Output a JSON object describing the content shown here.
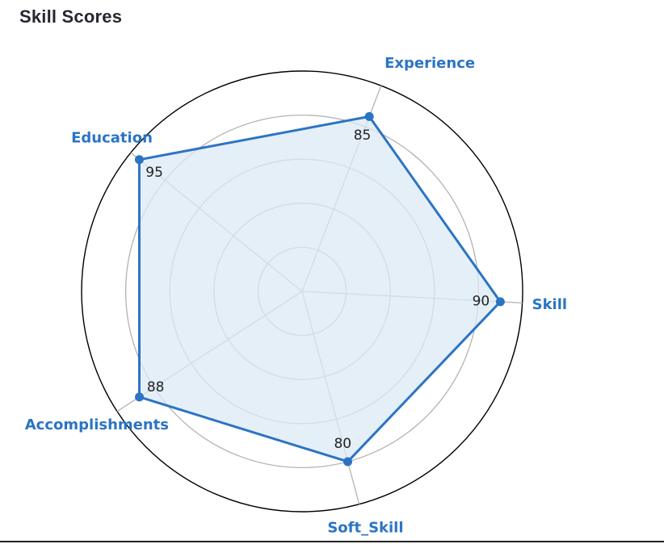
{
  "page": {
    "title": "Skill Scores"
  },
  "chart_data": {
    "type": "radar",
    "categories": [
      "Skill",
      "Experience",
      "Education",
      "Accomplishments",
      "Soft_Skill"
    ],
    "values": [
      90,
      85,
      95,
      88,
      80
    ],
    "value_labels": [
      "90",
      "85",
      "95",
      "88",
      "80"
    ],
    "rmax": 100,
    "rings": 5,
    "grid": true,
    "colors": {
      "line": "#2b74c4",
      "fill": "#dceaf6",
      "label": "#2b74c4",
      "grid": "#b3b3b3",
      "outer": "#000000"
    }
  }
}
